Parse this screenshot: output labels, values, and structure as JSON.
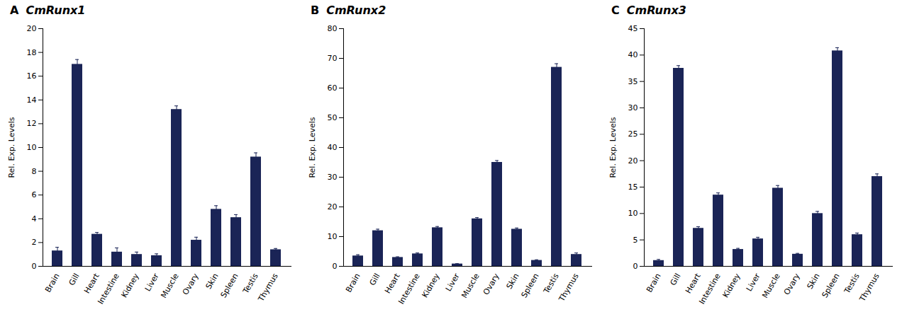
{
  "chart_data": [
    {
      "type": "bar",
      "title": "CmRunx1",
      "annotations": [
        "A"
      ],
      "ylabel": "Rel. Exp. Levels",
      "categories": [
        "Brain",
        "Gill",
        "Heart",
        "Intestine",
        "Kidney",
        "Liver",
        "Muscle",
        "Ovary",
        "Skin",
        "Spleen",
        "Testis",
        "Thymus"
      ],
      "values": [
        1.3,
        17.0,
        2.7,
        1.2,
        1.0,
        0.9,
        13.2,
        2.2,
        4.8,
        4.1,
        9.2,
        1.4
      ],
      "errors": [
        0.3,
        0.4,
        0.15,
        0.35,
        0.2,
        0.15,
        0.3,
        0.25,
        0.3,
        0.25,
        0.35,
        0.1
      ],
      "color": "#1a2456",
      "ylim": [
        0,
        20
      ],
      "yticks": [
        0,
        2,
        4,
        6,
        8,
        10,
        12,
        14,
        16,
        18,
        20
      ],
      "grid": false
    },
    {
      "type": "bar",
      "title": "CmRunx2",
      "annotations": [
        "B"
      ],
      "ylabel": "Rel. Exp. Levels",
      "categories": [
        "Brain",
        "Gill",
        "Heart",
        "Intestine",
        "Kidney",
        "Liver",
        "Muscle",
        "Ovary",
        "Skin",
        "Spleen",
        "Testis",
        "Thymus"
      ],
      "values": [
        3.5,
        12.0,
        3.0,
        4.2,
        13.0,
        0.8,
        16.0,
        35.0,
        12.5,
        2.0,
        67.0,
        4.0
      ],
      "errors": [
        0.4,
        0.5,
        0.2,
        0.3,
        0.4,
        0.1,
        0.4,
        0.6,
        0.4,
        0.2,
        1.2,
        0.5
      ],
      "color": "#1a2456",
      "ylim": [
        0,
        80
      ],
      "yticks": [
        0,
        10,
        20,
        30,
        40,
        50,
        60,
        70,
        80
      ],
      "grid": false
    },
    {
      "type": "bar",
      "title": "CmRunx3",
      "annotations": [
        "C"
      ],
      "ylabel": "Rel. Exp. Levels",
      "categories": [
        "Brain",
        "Gill",
        "Heart",
        "Intestine",
        "Kidney",
        "Liver",
        "Muscle",
        "Ovary",
        "Skin",
        "Spleen",
        "Testis",
        "Thymus"
      ],
      "values": [
        1.1,
        37.5,
        7.2,
        13.5,
        3.2,
        5.2,
        14.8,
        2.3,
        10.0,
        40.8,
        6.0,
        17.0
      ],
      "errors": [
        0.2,
        0.5,
        0.3,
        0.4,
        0.2,
        0.3,
        0.5,
        0.15,
        0.4,
        0.6,
        0.3,
        0.5
      ],
      "color": "#1a2456",
      "ylim": [
        0,
        45
      ],
      "yticks": [
        0,
        5,
        10,
        15,
        20,
        25,
        30,
        35,
        40,
        45
      ],
      "grid": false
    }
  ]
}
